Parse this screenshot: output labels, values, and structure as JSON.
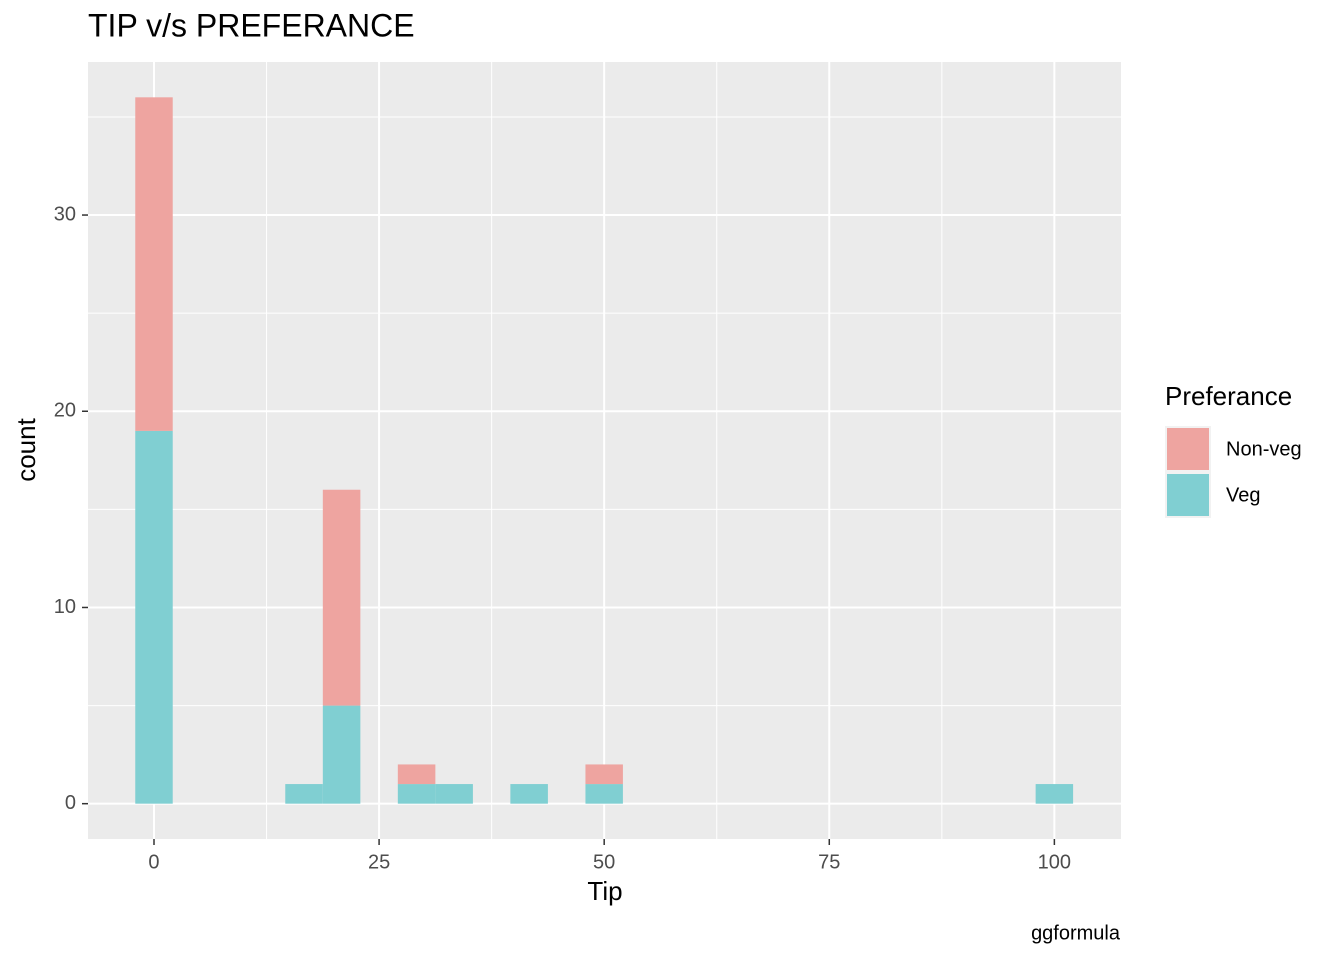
{
  "chart_data": {
    "type": "histogram",
    "title": "TIP v/s PREFERANCE",
    "x_label": "Tip",
    "y_label": "count",
    "caption": "ggformula",
    "legend_title": "Preferance",
    "bins": [
      -2.08,
      2.08,
      6.25,
      10.42,
      14.58,
      18.75,
      22.92,
      27.08,
      31.25,
      35.42,
      39.58,
      43.75,
      47.92,
      52.08,
      56.25,
      60.42,
      64.58,
      68.75,
      72.92,
      77.08,
      81.25,
      85.42,
      89.58,
      93.75,
      97.92,
      102.08
    ],
    "series": [
      {
        "name": "Non-veg",
        "color": "#eea4a0",
        "values": [
          17,
          0,
          0,
          0,
          0,
          11,
          0,
          1,
          0,
          0,
          0,
          0,
          1,
          0,
          0,
          0,
          0,
          0,
          0,
          0,
          0,
          0,
          0,
          0,
          0
        ]
      },
      {
        "name": "Veg",
        "color": "#80cfd2",
        "values": [
          19,
          0,
          0,
          0,
          1,
          5,
          0,
          1,
          1,
          0,
          1,
          0,
          1,
          0,
          0,
          0,
          0,
          0,
          0,
          0,
          0,
          0,
          0,
          0,
          1
        ]
      }
    ],
    "xlim": [
      -7.33,
      107.4
    ],
    "ylim": [
      -1.8,
      37.8
    ],
    "xticks": [
      0,
      25,
      50,
      75,
      100
    ],
    "yticks": [
      0,
      10,
      20,
      30
    ],
    "minor_xticks": [
      12.5,
      37.5,
      62.5,
      87.5
    ],
    "minor_yticks": [
      5,
      15,
      25,
      35
    ],
    "grid": true,
    "legend": "right"
  }
}
